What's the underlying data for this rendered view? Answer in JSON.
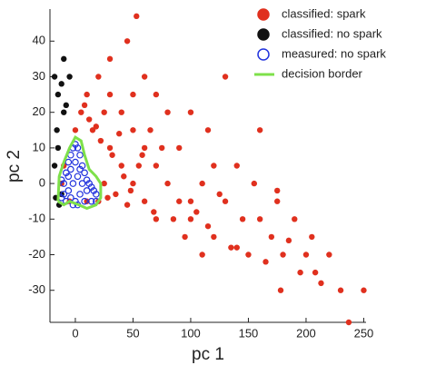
{
  "chart_data": {
    "type": "scatter",
    "xlabel": "pc 1",
    "ylabel": "pc 2",
    "xlim": [
      -22,
      252
    ],
    "ylim": [
      -39,
      49
    ],
    "xticks": [
      0,
      50,
      100,
      150,
      200,
      250
    ],
    "yticks": [
      -30,
      -20,
      -10,
      0,
      10,
      20,
      30,
      40
    ],
    "legend": "upper right",
    "series": [
      {
        "name": "classified: spark",
        "color": "#e0301e",
        "style": "filled",
        "x": [
          53,
          237,
          250,
          208,
          213,
          178,
          200,
          185,
          130,
          160,
          140,
          155,
          175,
          190,
          220,
          145,
          120,
          110,
          100,
          90,
          80,
          70,
          60,
          45,
          30,
          20,
          10,
          5,
          0,
          25,
          40,
          50,
          60,
          70,
          80,
          90,
          100,
          110,
          120,
          130,
          140,
          150,
          160,
          170,
          180,
          195,
          205,
          230,
          30,
          40,
          50,
          60,
          70,
          35,
          45,
          25,
          55,
          65,
          75,
          85,
          95,
          105,
          115,
          125,
          135,
          20,
          15,
          10,
          -10,
          -5,
          -12,
          30,
          50,
          115,
          100,
          175,
          165,
          12,
          22,
          32,
          42,
          8,
          18,
          28,
          38,
          48,
          58,
          68
        ],
        "y": [
          47,
          -39,
          -30,
          -25,
          -28,
          -30,
          -20,
          -16,
          30,
          15,
          5,
          0,
          -5,
          -10,
          -20,
          -10,
          -15,
          -20,
          -5,
          10,
          20,
          25,
          30,
          40,
          35,
          30,
          25,
          20,
          15,
          20,
          20,
          15,
          10,
          5,
          0,
          -5,
          -10,
          0,
          5,
          -5,
          -18,
          -20,
          -10,
          -15,
          -20,
          -25,
          -15,
          -30,
          10,
          5,
          0,
          -5,
          -10,
          -3,
          -6,
          0,
          5,
          15,
          10,
          -10,
          -15,
          -8,
          -12,
          -3,
          -18,
          -5,
          15,
          -5,
          5,
          -5,
          0,
          25,
          25,
          15,
          20,
          -2,
          -22,
          18,
          12,
          8,
          2,
          22,
          16,
          -4,
          14,
          -2,
          8,
          -8
        ]
      },
      {
        "name": "classified: no spark",
        "color": "#111111",
        "style": "filled",
        "x": [
          -18,
          -15,
          -12,
          -10,
          -8,
          -15,
          -18,
          -17,
          -14,
          -12,
          -16,
          -10,
          -5
        ],
        "y": [
          30,
          25,
          28,
          20,
          22,
          10,
          5,
          -4,
          -6,
          -3,
          15,
          35,
          30
        ]
      },
      {
        "name": "measured: no spark",
        "color": "#2233dd",
        "style": "hollow",
        "x": [
          -12,
          -10,
          -8,
          -6,
          -4,
          -2,
          0,
          2,
          4,
          6,
          8,
          10,
          12,
          14,
          16,
          18,
          -10,
          -6,
          -2,
          2,
          6,
          10,
          -8,
          -4,
          0,
          4,
          8,
          -4,
          0,
          4,
          2,
          -2,
          14,
          18,
          -12,
          -6
        ],
        "y": [
          -4,
          0,
          3,
          6,
          8,
          10,
          11,
          10,
          8,
          5,
          3,
          1,
          0,
          -1,
          -2,
          -3,
          -3,
          -2,
          0,
          2,
          0,
          -2,
          -5,
          -4,
          -5,
          -3,
          -5,
          4,
          6,
          4,
          -6,
          -6,
          -5,
          -5,
          1,
          2
        ]
      },
      {
        "name": "decision border",
        "color": "#7ee04a",
        "style": "line",
        "x": [
          -15,
          -14,
          -10,
          -5,
          0,
          5,
          8,
          12,
          18,
          22,
          22,
          18,
          10,
          3,
          -5,
          -10,
          -15
        ],
        "y": [
          -5,
          2,
          6,
          10,
          13,
          12,
          8,
          4,
          2,
          0,
          -4,
          -6,
          -7,
          -6,
          -5,
          -6,
          -5
        ]
      }
    ]
  }
}
